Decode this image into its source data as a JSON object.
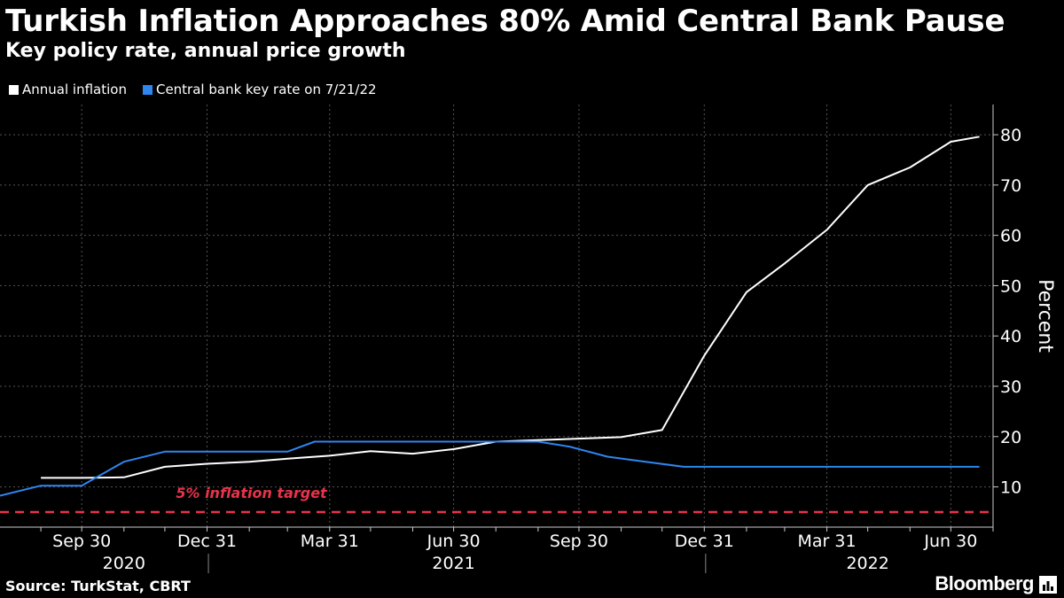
{
  "title": "Turkish Inflation Approaches 80% Amid Central Bank Pause",
  "subtitle": "Key policy rate, annual price growth",
  "source": "Source: TurkStat, CBRT",
  "brand": "Bloomberg",
  "colors": {
    "background": "#000000",
    "inflation": "#ffffff",
    "policy_rate": "#2e86f0",
    "target": "#e8334a",
    "grid": "#555555",
    "text": "#ffffff"
  },
  "chart_data": {
    "type": "line",
    "ylabel": "Percent",
    "ylim": [
      2,
      86
    ],
    "yticks": [
      10,
      20,
      30,
      40,
      50,
      60,
      70,
      80
    ],
    "x_range": [
      "2020-08-01",
      "2022-07-31"
    ],
    "x_tick_labels": [
      {
        "date": "2020-09-30",
        "label": "Sep 30"
      },
      {
        "date": "2020-12-31",
        "label": "Dec 31"
      },
      {
        "date": "2021-03-31",
        "label": "Mar 31"
      },
      {
        "date": "2021-06-30",
        "label": "Jun 30"
      },
      {
        "date": "2021-09-30",
        "label": "Sep 30"
      },
      {
        "date": "2021-12-31",
        "label": "Dec 31"
      },
      {
        "date": "2022-03-31",
        "label": "Mar 31"
      },
      {
        "date": "2022-06-30",
        "label": "Jun 30"
      }
    ],
    "year_labels": [
      {
        "label": "2020",
        "date": "2020-10-31"
      },
      {
        "label": "2021",
        "date": "2021-06-30"
      },
      {
        "label": "2022",
        "date": "2022-04-30"
      }
    ],
    "year_dividers": [
      "2021-01-01",
      "2022-01-01"
    ],
    "series": [
      {
        "name": "Annual inflation",
        "key": "inflation",
        "points": [
          [
            "2020-08-31",
            11.8
          ],
          [
            "2020-09-30",
            11.8
          ],
          [
            "2020-10-31",
            11.9
          ],
          [
            "2020-11-30",
            14.0
          ],
          [
            "2020-12-31",
            14.6
          ],
          [
            "2021-01-31",
            15.0
          ],
          [
            "2021-02-28",
            15.6
          ],
          [
            "2021-03-31",
            16.2
          ],
          [
            "2021-04-30",
            17.1
          ],
          [
            "2021-05-31",
            16.6
          ],
          [
            "2021-06-30",
            17.5
          ],
          [
            "2021-07-31",
            19.0
          ],
          [
            "2021-08-31",
            19.3
          ],
          [
            "2021-09-30",
            19.6
          ],
          [
            "2021-10-31",
            19.9
          ],
          [
            "2021-11-30",
            21.3
          ],
          [
            "2021-12-31",
            36.1
          ],
          [
            "2022-01-31",
            48.7
          ],
          [
            "2022-02-28",
            54.4
          ],
          [
            "2022-03-31",
            61.1
          ],
          [
            "2022-04-30",
            70.0
          ],
          [
            "2022-05-31",
            73.5
          ],
          [
            "2022-06-30",
            78.6
          ],
          [
            "2022-07-21",
            79.6
          ]
        ]
      },
      {
        "name": "Central bank key rate on 7/21/22",
        "key": "policy_rate",
        "points": [
          [
            "2020-08-01",
            8.25
          ],
          [
            "2020-08-31",
            10.25
          ],
          [
            "2020-09-30",
            10.25
          ],
          [
            "2020-10-31",
            15.0
          ],
          [
            "2020-11-30",
            17.0
          ],
          [
            "2020-12-31",
            17.0
          ],
          [
            "2021-01-31",
            17.0
          ],
          [
            "2021-02-28",
            17.0
          ],
          [
            "2021-03-20",
            19.0
          ],
          [
            "2021-03-31",
            19.0
          ],
          [
            "2021-06-30",
            19.0
          ],
          [
            "2021-08-31",
            19.0
          ],
          [
            "2021-09-23",
            18.0
          ],
          [
            "2021-10-21",
            16.0
          ],
          [
            "2021-11-18",
            15.0
          ],
          [
            "2021-12-16",
            14.0
          ],
          [
            "2022-07-21",
            14.0
          ]
        ]
      },
      {
        "name": "5% inflation target",
        "key": "target",
        "points": [
          [
            "2020-08-01",
            5.0
          ],
          [
            "2022-07-31",
            5.0
          ]
        ]
      }
    ],
    "annotations": [
      {
        "text": "5% inflation target",
        "date": "2020-12-31",
        "y": 5.0
      }
    ],
    "legend": [
      "Annual inflation",
      "Central bank key rate on 7/21/22"
    ]
  }
}
